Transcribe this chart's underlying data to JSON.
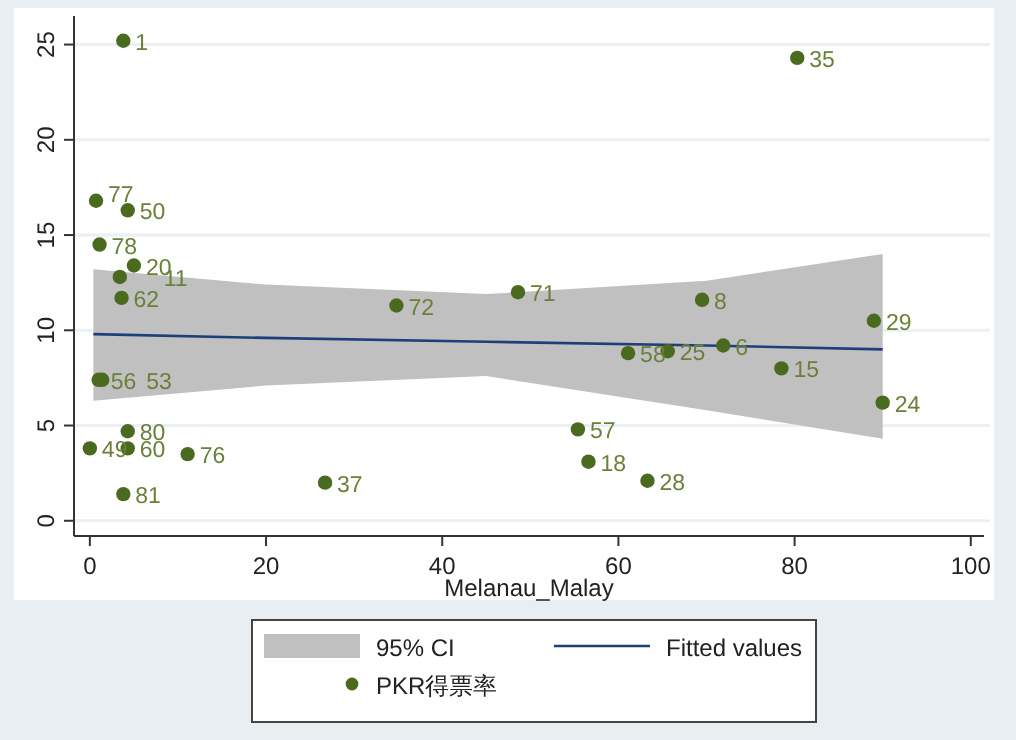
{
  "chart_data": {
    "type": "scatter",
    "xlabel": "Melanau_Malay",
    "xlim": [
      -1.8,
      101.5
    ],
    "ylim": [
      -0.8,
      26.5
    ],
    "xticks": [
      0,
      20,
      40,
      60,
      80,
      100
    ],
    "yticks": [
      0,
      5,
      10,
      15,
      20,
      25
    ],
    "grid": "y",
    "legend": "bottom",
    "series": [
      {
        "name": "Fitted values",
        "type": "line",
        "color": "#1f3f7a",
        "x": [
          0.4,
          20,
          45,
          70,
          90
        ],
        "values": [
          9.8,
          9.6,
          9.4,
          9.2,
          9.0
        ],
        "lower": [
          6.3,
          7.1,
          7.6,
          5.8,
          4.3
        ],
        "upper": [
          13.2,
          12.4,
          11.9,
          12.6,
          14.0
        ]
      },
      {
        "name": "PKR得票率",
        "marker": "circle",
        "color": "#4a6b1f",
        "x": [
          3.8,
          80.3,
          0.7,
          4.3,
          1.1,
          5.0,
          3.4,
          3.6,
          34.8,
          48.6,
          69.5,
          89.0,
          61.1,
          65.6,
          71.9,
          78.5,
          90.0,
          55.4,
          56.6,
          63.3,
          1.0,
          1.4,
          4.3,
          0.0,
          4.3,
          11.1,
          26.7,
          3.8
        ],
        "values": [
          25.2,
          24.3,
          16.8,
          16.3,
          14.5,
          13.4,
          12.8,
          11.7,
          11.3,
          12.0,
          11.6,
          10.5,
          8.8,
          8.9,
          9.2,
          8.0,
          6.2,
          4.8,
          3.1,
          2.1,
          7.4,
          7.4,
          4.7,
          3.8,
          3.8,
          3.5,
          2.0,
          1.4
        ]
      }
    ],
    "annotations": [
      "95% CI",
      {
        "text": "1",
        "x": 3.8,
        "y": 25.2
      },
      {
        "text": "35",
        "x": 80.3,
        "y": 24.3
      },
      {
        "text": "77",
        "x": 0.7,
        "y": 16.8
      },
      {
        "text": "50",
        "x": 4.3,
        "y": 16.3
      },
      {
        "text": "78",
        "x": 1.1,
        "y": 14.5
      },
      {
        "text": "20",
        "x": 5.0,
        "y": 13.4
      },
      {
        "text": "11",
        "x": 3.4,
        "y": 12.8
      },
      {
        "text": "62",
        "x": 3.6,
        "y": 11.7
      },
      {
        "text": "72",
        "x": 34.8,
        "y": 11.3
      },
      {
        "text": "71",
        "x": 48.6,
        "y": 12.0
      },
      {
        "text": "8",
        "x": 69.5,
        "y": 11.6
      },
      {
        "text": "29",
        "x": 89.0,
        "y": 10.5
      },
      {
        "text": "58",
        "x": 61.1,
        "y": 8.8
      },
      {
        "text": "25",
        "x": 65.6,
        "y": 8.9
      },
      {
        "text": "6",
        "x": 71.9,
        "y": 9.2
      },
      {
        "text": "15",
        "x": 78.5,
        "y": 8.0
      },
      {
        "text": "24",
        "x": 90.0,
        "y": 6.2
      },
      {
        "text": "57",
        "x": 55.4,
        "y": 4.8
      },
      {
        "text": "18",
        "x": 56.6,
        "y": 3.1
      },
      {
        "text": "28",
        "x": 63.3,
        "y": 2.1
      },
      {
        "text": "56",
        "x": 1.0,
        "y": 7.4
      },
      {
        "text": "53",
        "x": 1.4,
        "y": 7.4
      },
      {
        "text": "80",
        "x": 4.3,
        "y": 4.7
      },
      {
        "text": "49",
        "x": 0.0,
        "y": 3.8
      },
      {
        "text": "60",
        "x": 4.3,
        "y": 3.8
      },
      {
        "text": "76",
        "x": 11.1,
        "y": 3.5
      },
      {
        "text": "37",
        "x": 26.7,
        "y": 2.0
      },
      {
        "text": "81",
        "x": 3.8,
        "y": 1.4
      }
    ]
  }
}
